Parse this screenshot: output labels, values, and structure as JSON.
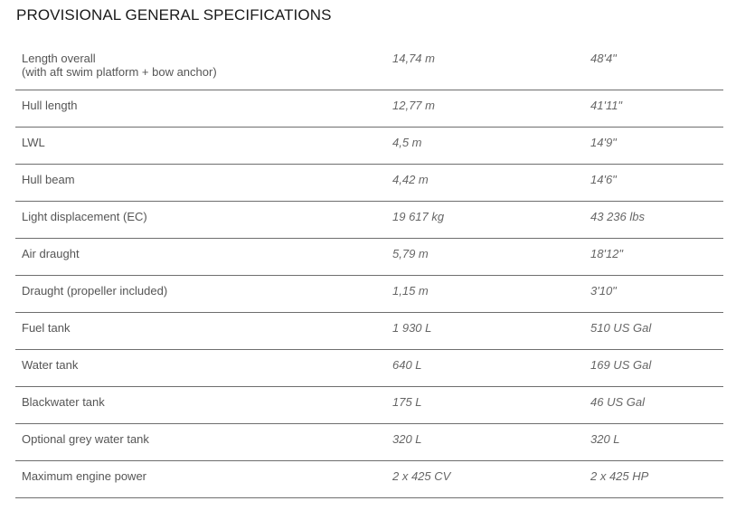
{
  "title": "PROVISIONAL GENERAL SPECIFICATIONS",
  "rows": [
    {
      "label": "Length overall",
      "sublabel": "(with aft swim platform + bow anchor)",
      "metric": "14,74 m",
      "imperial": "48'4\""
    },
    {
      "label": "Hull length",
      "metric": "12,77 m",
      "imperial": "41'11\""
    },
    {
      "label": "LWL",
      "metric": "4,5 m",
      "imperial": "14'9\""
    },
    {
      "label": "Hull beam",
      "metric": "4,42 m",
      "imperial": "14'6\""
    },
    {
      "label": "Light displacement (EC)",
      "metric": "19 617 kg",
      "imperial": "43 236 lbs"
    },
    {
      "label": "Air draught",
      "metric": "5,79 m",
      "imperial": "18'12\""
    },
    {
      "label": "Draught (propeller included)",
      "metric": "1,15 m",
      "imperial": "3'10\""
    },
    {
      "label": "Fuel tank",
      "metric": "1 930 L",
      "imperial": "510 US Gal"
    },
    {
      "label": "Water tank",
      "metric": "640 L",
      "imperial": "169 US Gal"
    },
    {
      "label": "Blackwater tank",
      "metric": "175 L",
      "imperial": "46 US Gal"
    },
    {
      "label": "Optional grey water tank",
      "metric": "320 L",
      "imperial": "320 L"
    },
    {
      "label": "Maximum engine power",
      "metric": "2 x 425 CV",
      "imperial": "2 x 425 HP"
    }
  ]
}
